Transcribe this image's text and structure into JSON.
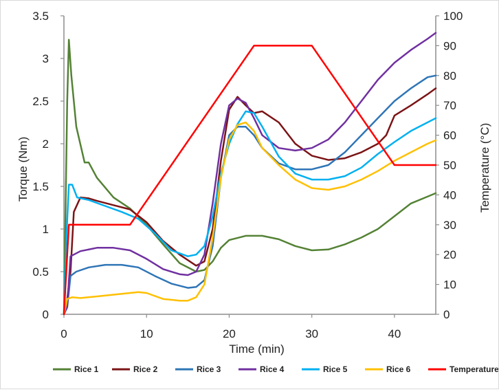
{
  "chart_data": {
    "type": "line",
    "xlabel": "Time (min)",
    "ylabel": "Torque (Nm)",
    "y2label": "Temperature (°C)",
    "xlim": [
      0,
      45
    ],
    "ylim": [
      0,
      3.5
    ],
    "y2lim": [
      0,
      100
    ],
    "xticks": [
      "0",
      "10",
      "20",
      "30",
      "40"
    ],
    "yticks": [
      "0",
      "0.5",
      "1",
      "1.5",
      "2",
      "2.5",
      "3",
      "3.5"
    ],
    "y2ticks": [
      "0",
      "10",
      "20",
      "30",
      "40",
      "50",
      "60",
      "70",
      "80",
      "90",
      "100"
    ],
    "grid": false,
    "legend_position": "bottom",
    "series": [
      {
        "name": "Rice 1",
        "axis": "left",
        "color": "#548235",
        "x": [
          0,
          0.4,
          0.6,
          0.9,
          1.5,
          2.5,
          3,
          4,
          6,
          8,
          10,
          12,
          14,
          16,
          17,
          18,
          19,
          20,
          22,
          24,
          26,
          28,
          30,
          32,
          34,
          36,
          38,
          40,
          42,
          44,
          45
        ],
        "y": [
          0,
          2.5,
          3.22,
          2.8,
          2.2,
          1.78,
          1.78,
          1.6,
          1.37,
          1.24,
          1.05,
          0.82,
          0.6,
          0.5,
          0.52,
          0.62,
          0.78,
          0.87,
          0.92,
          0.92,
          0.88,
          0.8,
          0.75,
          0.76,
          0.82,
          0.9,
          1.0,
          1.15,
          1.3,
          1.38,
          1.42
        ]
      },
      {
        "name": "Rice 2",
        "axis": "left",
        "color": "#7b1416",
        "x": [
          0,
          0.3,
          0.8,
          1.2,
          2,
          3,
          4,
          6,
          8,
          10,
          12,
          14,
          16,
          17,
          18,
          19,
          20,
          21,
          22,
          23,
          24,
          26,
          28,
          30,
          32,
          34,
          36,
          38,
          39,
          40,
          42,
          44,
          45
        ],
        "y": [
          0,
          0.1,
          0.5,
          1.2,
          1.37,
          1.36,
          1.33,
          1.28,
          1.23,
          1.08,
          0.86,
          0.7,
          0.57,
          0.62,
          1.0,
          1.8,
          2.4,
          2.55,
          2.45,
          2.36,
          2.38,
          2.25,
          2.0,
          1.86,
          1.81,
          1.83,
          1.9,
          2.0,
          2.1,
          2.33,
          2.45,
          2.58,
          2.65
        ]
      },
      {
        "name": "Rice 3",
        "axis": "left",
        "color": "#2e75b6",
        "x": [
          0,
          0.4,
          0.8,
          1.5,
          3,
          5,
          7,
          9,
          11,
          13,
          15,
          16,
          17,
          18,
          19,
          20,
          21,
          22,
          23,
          24,
          26,
          28,
          30,
          32,
          34,
          36,
          38,
          40,
          42,
          44,
          45
        ],
        "y": [
          0,
          0.08,
          0.45,
          0.5,
          0.55,
          0.58,
          0.58,
          0.55,
          0.45,
          0.36,
          0.31,
          0.32,
          0.4,
          0.8,
          1.6,
          2.1,
          2.2,
          2.2,
          2.1,
          1.95,
          1.77,
          1.7,
          1.7,
          1.75,
          1.9,
          2.1,
          2.3,
          2.5,
          2.65,
          2.78,
          2.8
        ]
      },
      {
        "name": "Rice 4",
        "axis": "left",
        "color": "#7030a0",
        "x": [
          0,
          0.4,
          0.8,
          2,
          4,
          6,
          8,
          10,
          12,
          14,
          15,
          16,
          17,
          18,
          19,
          20,
          21,
          22,
          23,
          24,
          26,
          28,
          30,
          32,
          34,
          36,
          38,
          40,
          42,
          44,
          45
        ],
        "y": [
          0,
          0.1,
          0.68,
          0.74,
          0.78,
          0.78,
          0.75,
          0.65,
          0.53,
          0.47,
          0.46,
          0.5,
          0.7,
          1.3,
          2.0,
          2.45,
          2.53,
          2.48,
          2.3,
          2.1,
          1.95,
          1.92,
          1.95,
          2.05,
          2.25,
          2.5,
          2.75,
          2.95,
          3.1,
          3.23,
          3.3
        ]
      },
      {
        "name": "Rice 5",
        "axis": "left",
        "color": "#00b0f0",
        "x": [
          0,
          0.3,
          0.6,
          1,
          1.6,
          3,
          5,
          7,
          9,
          11,
          13,
          15,
          16,
          17,
          18,
          19,
          20,
          21,
          22,
          23,
          24,
          26,
          28,
          30,
          32,
          34,
          36,
          38,
          40,
          42,
          44,
          45
        ],
        "y": [
          0,
          0.9,
          1.52,
          1.52,
          1.37,
          1.34,
          1.27,
          1.2,
          1.12,
          0.95,
          0.75,
          0.68,
          0.7,
          0.8,
          1.15,
          1.65,
          2.0,
          2.23,
          2.38,
          2.36,
          2.2,
          1.85,
          1.65,
          1.58,
          1.58,
          1.62,
          1.72,
          1.88,
          2.02,
          2.15,
          2.25,
          2.3
        ]
      },
      {
        "name": "Rice 6",
        "axis": "left",
        "color": "#ffc000",
        "x": [
          0,
          0.4,
          1,
          2,
          4,
          6,
          8,
          9,
          10,
          12,
          14,
          15,
          16,
          17,
          18,
          19,
          20,
          21,
          22,
          23,
          24,
          26,
          28,
          30,
          32,
          34,
          36,
          38,
          40,
          42,
          44,
          45
        ],
        "y": [
          0,
          0.18,
          0.2,
          0.19,
          0.21,
          0.23,
          0.25,
          0.26,
          0.25,
          0.18,
          0.16,
          0.16,
          0.2,
          0.35,
          0.9,
          1.6,
          2.05,
          2.22,
          2.25,
          2.15,
          1.95,
          1.75,
          1.58,
          1.48,
          1.46,
          1.5,
          1.58,
          1.68,
          1.8,
          1.9,
          2.0,
          2.04
        ]
      },
      {
        "name": "Temperature",
        "axis": "right",
        "color": "#ff0000",
        "x": [
          0,
          0.6,
          8,
          23,
          30,
          40,
          45
        ],
        "y": [
          0,
          30,
          30,
          90,
          90,
          50,
          50
        ]
      }
    ]
  }
}
